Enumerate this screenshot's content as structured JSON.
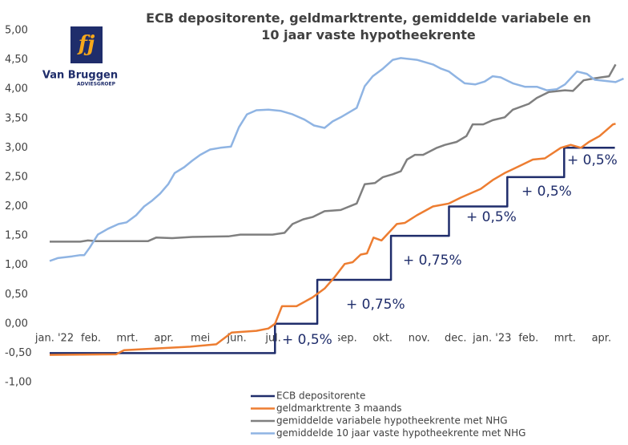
{
  "logo": {
    "mark": "fj",
    "name": "Van Bruggen",
    "sub": "ADVIESGROEP"
  },
  "chart_data": {
    "type": "line",
    "title": "ECB depositorente, geldmarktrente, gemiddelde variabele en 10 jaar vaste hypotheekrente",
    "xlim": [
      0,
      15.75
    ],
    "xticks": [
      {
        "value": 0,
        "label": "jan. '22"
      },
      {
        "value": 1,
        "label": "feb."
      },
      {
        "value": 2,
        "label": "mrt."
      },
      {
        "value": 3,
        "label": "apr."
      },
      {
        "value": 4,
        "label": "mei"
      },
      {
        "value": 5,
        "label": "jun."
      },
      {
        "value": 6,
        "label": "jul."
      },
      {
        "value": 8,
        "label": "sep."
      },
      {
        "value": 9,
        "label": "okt."
      },
      {
        "value": 10,
        "label": "nov."
      },
      {
        "value": 11,
        "label": "dec."
      },
      {
        "value": 12,
        "label": "jan. '23"
      },
      {
        "value": 13,
        "label": "feb."
      },
      {
        "value": 14,
        "label": "mrt."
      },
      {
        "value": 15,
        "label": "apr."
      }
    ],
    "ylim": [
      -1,
      5
    ],
    "yticks": [
      {
        "value": -1,
        "label": "-1,00"
      },
      {
        "value": -0.5,
        "label": "-0,50"
      },
      {
        "value": 0,
        "label": "0,00"
      },
      {
        "value": 0.5,
        "label": "0,50"
      },
      {
        "value": 1,
        "label": "1,00"
      },
      {
        "value": 1.5,
        "label": "1,50"
      },
      {
        "value": 2,
        "label": "2,00"
      },
      {
        "value": 2.5,
        "label": "2,50"
      },
      {
        "value": 3,
        "label": "3,00"
      },
      {
        "value": 3.5,
        "label": "3,50"
      },
      {
        "value": 4,
        "label": "4,00"
      },
      {
        "value": 4.5,
        "label": "4,50"
      },
      {
        "value": 5,
        "label": "5,00"
      }
    ],
    "grid": false,
    "annotations": [
      "+ 0,5%",
      "+ 0,75%",
      "+ 0,75%",
      "+ 0,5%",
      "+ 0,5%",
      "+ 0,5%"
    ],
    "series": [
      {
        "name": "ECB depositorente",
        "color": "#1f2d6b",
        "x": [
          0,
          6.18,
          6.18,
          7.34,
          7.34,
          9.36,
          9.36,
          10.95,
          10.95,
          12.55,
          12.55,
          14.11,
          14.11,
          15.5
        ],
        "values": [
          -0.5,
          -0.5,
          0,
          0,
          0.75,
          0.75,
          1.5,
          1.5,
          2,
          2,
          2.5,
          2.5,
          3,
          3
        ]
      },
      {
        "name": "geldmarktrente 3 maands",
        "color": "#ed7d31",
        "x": [
          0,
          1.82,
          2.04,
          2.92,
          3.85,
          4.57,
          4.99,
          5.67,
          6.0,
          6.18,
          6.37,
          6.77,
          7.21,
          7.54,
          7.82,
          8.09,
          8.31,
          8.53,
          8.7,
          8.88,
          9.1,
          9.52,
          9.74,
          10.07,
          10.51,
          10.95,
          11.27,
          11.82,
          12.15,
          12.48,
          12.92,
          13.25,
          13.58,
          14.02,
          14.29,
          14.57,
          14.79,
          15.08,
          15.45,
          15.52
        ],
        "values": [
          -0.53,
          -0.52,
          -0.45,
          -0.42,
          -0.39,
          -0.35,
          -0.15,
          -0.12,
          -0.08,
          0,
          0.3,
          0.3,
          0.45,
          0.6,
          0.8,
          1.02,
          1.05,
          1.18,
          1.2,
          1.47,
          1.42,
          1.7,
          1.72,
          1.85,
          2,
          2.05,
          2.15,
          2.3,
          2.45,
          2.57,
          2.7,
          2.8,
          2.82,
          3,
          3.05,
          3,
          3.1,
          3.2,
          3.4,
          3.41
        ]
      },
      {
        "name": "gemiddelde variabele hypotheekrente met NHG",
        "color": "#7f7f7f",
        "x": [
          0,
          0.84,
          1.05,
          1.27,
          2.7,
          2.92,
          3.36,
          3.91,
          4.9,
          5.23,
          6.11,
          6.44,
          6.66,
          6.95,
          7.21,
          7.54,
          7.98,
          8.42,
          8.64,
          8.92,
          9.14,
          9.41,
          9.63,
          9.8,
          10.02,
          10.24,
          10.62,
          10.84,
          11.16,
          11.43,
          11.6,
          11.89,
          12.15,
          12.48,
          12.7,
          13.14,
          13.36,
          13.69,
          14.13,
          14.35,
          14.64,
          14.9,
          15.12,
          15.34,
          15.52
        ],
        "values": [
          1.4,
          1.4,
          1.42,
          1.41,
          1.41,
          1.47,
          1.46,
          1.48,
          1.49,
          1.52,
          1.52,
          1.55,
          1.7,
          1.78,
          1.82,
          1.92,
          1.94,
          2.05,
          2.38,
          2.4,
          2.5,
          2.55,
          2.6,
          2.8,
          2.88,
          2.88,
          3,
          3.05,
          3.1,
          3.2,
          3.4,
          3.4,
          3.47,
          3.52,
          3.65,
          3.75,
          3.85,
          3.95,
          3.98,
          3.97,
          4.15,
          4.18,
          4.2,
          4.22,
          4.42
        ]
      },
      {
        "name": "gemiddelde 10 jaar vaste hypotheekrente met NHG",
        "color": "#8fb4e3",
        "x": [
          0,
          0.22,
          0.62,
          0.84,
          0.95,
          1.1,
          1.32,
          1.6,
          1.89,
          2.11,
          2.37,
          2.59,
          2.81,
          3.03,
          3.25,
          3.43,
          3.69,
          3.91,
          4.13,
          4.4,
          4.68,
          4.97,
          5.19,
          5.41,
          5.67,
          6.0,
          6.33,
          6.66,
          6.99,
          7.25,
          7.54,
          7.76,
          7.98,
          8.2,
          8.42,
          8.64,
          8.86,
          9.14,
          9.41,
          9.63,
          10.07,
          10.51,
          10.73,
          10.95,
          11.16,
          11.38,
          11.67,
          11.93,
          12.15,
          12.37,
          12.7,
          13.03,
          13.36,
          13.63,
          13.91,
          14.13,
          14.46,
          14.73,
          14.95,
          15.23,
          15.52,
          15.74
        ],
        "values": [
          1.07,
          1.12,
          1.15,
          1.17,
          1.17,
          1.3,
          1.52,
          1.62,
          1.7,
          1.73,
          1.85,
          2,
          2.1,
          2.22,
          2.38,
          2.57,
          2.67,
          2.78,
          2.88,
          2.97,
          3,
          3.02,
          3.35,
          3.57,
          3.64,
          3.65,
          3.63,
          3.57,
          3.48,
          3.38,
          3.34,
          3.45,
          3.52,
          3.6,
          3.68,
          4.05,
          4.22,
          4.35,
          4.5,
          4.53,
          4.5,
          4.42,
          4.35,
          4.3,
          4.2,
          4.1,
          4.08,
          4.13,
          4.22,
          4.2,
          4.1,
          4.04,
          4.04,
          3.98,
          4,
          4.08,
          4.3,
          4.26,
          4.16,
          4.14,
          4.12,
          4.18
        ]
      }
    ]
  }
}
